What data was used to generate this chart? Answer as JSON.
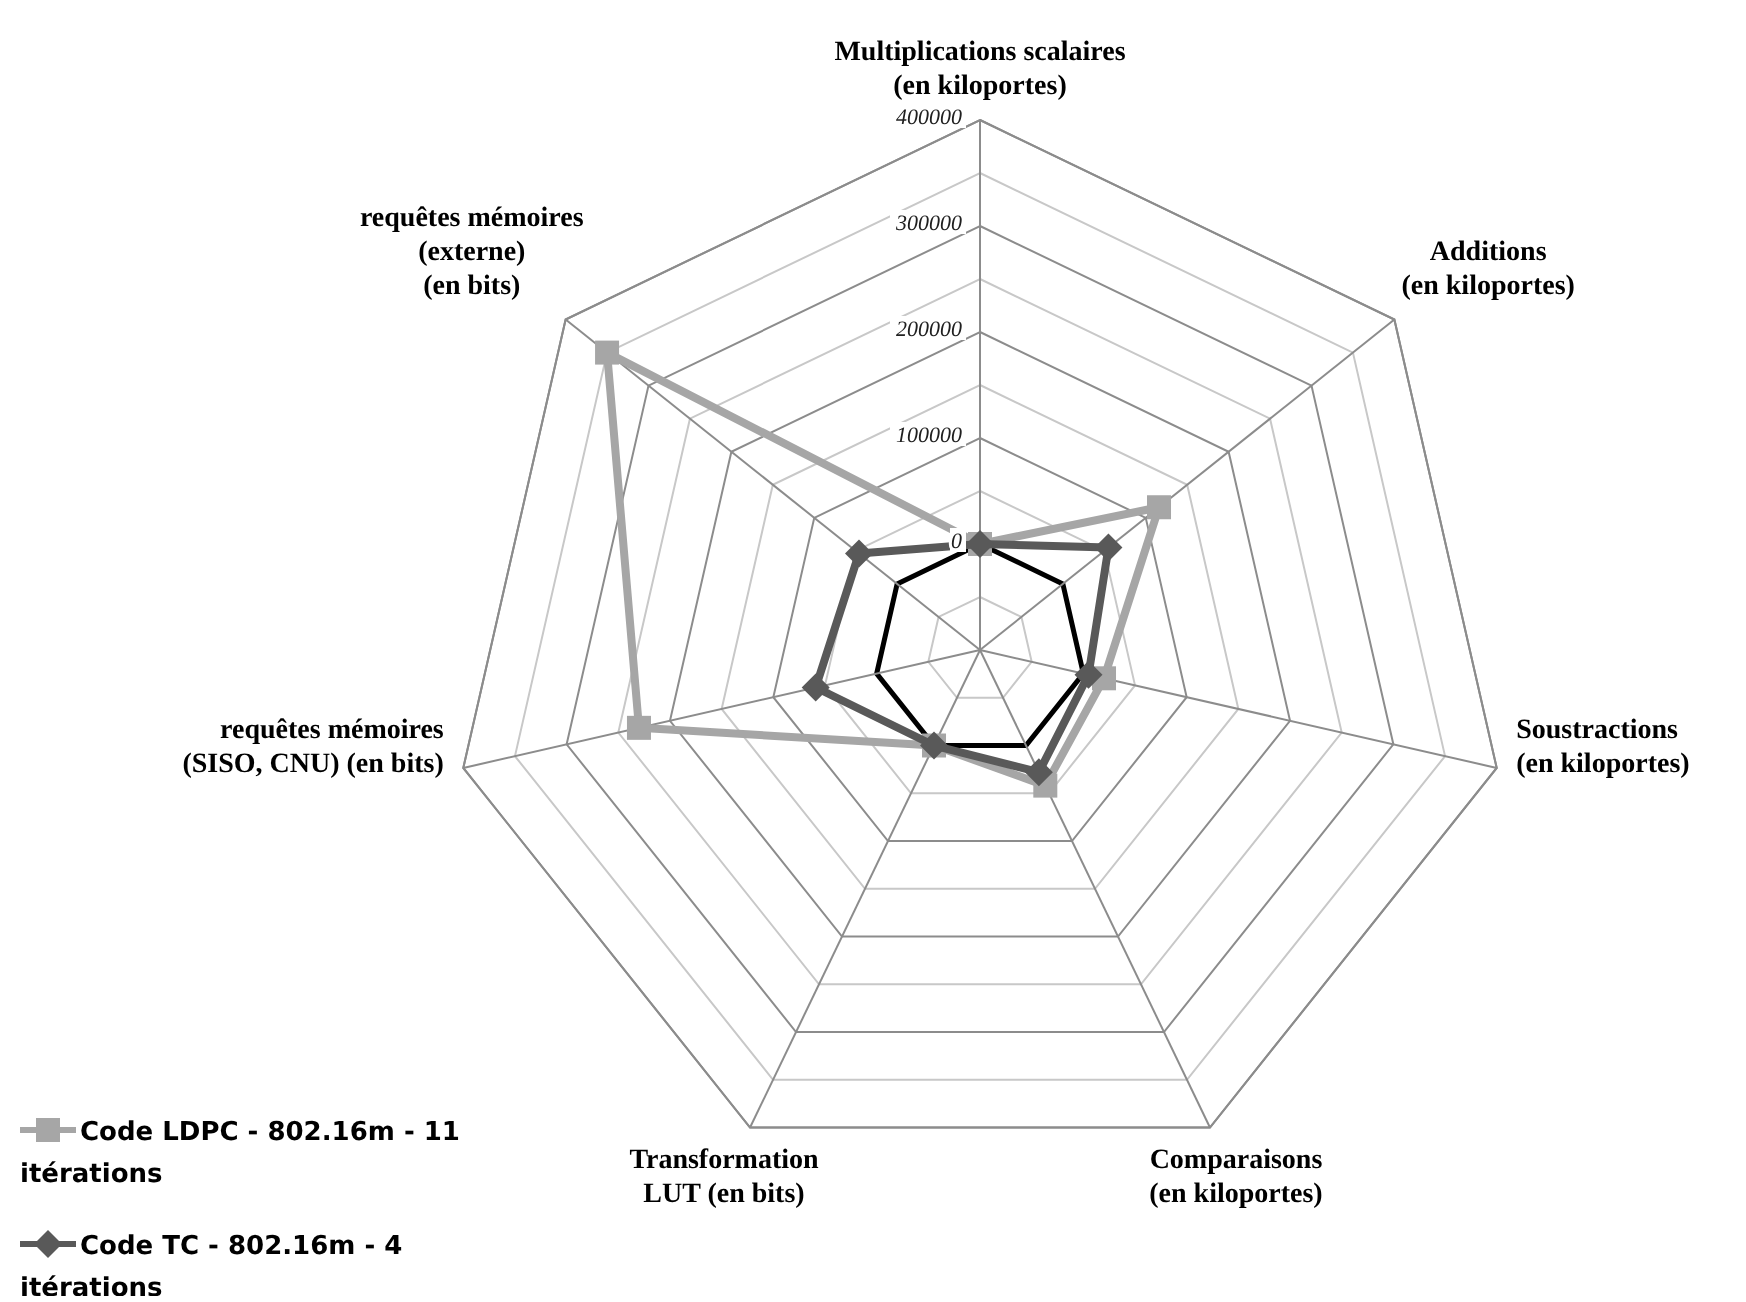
{
  "chart_data": {
    "type": "radar",
    "categories": [
      "Multiplications scalaires\n(en kiloportes)",
      "Additions\n(en kiloportes)",
      "Soustractions\n(en kiloportes)",
      "Comparaisons\n(en kiloportes)",
      "Transformation\nLUT (en bits)",
      "requêtes mémoires\n(SISO, CNU) (en bits)",
      "requêtes mémoires\n(externe)\n(en bits)"
    ],
    "series": [
      {
        "name": "Code LDPC - 802.16m - 11 itérations",
        "color": "#a6a6a6",
        "marker": "square",
        "values": [
          0,
          116000,
          20000,
          42000,
          0,
          230000,
          350000
        ]
      },
      {
        "name": "Code TC - 802.16m - 4 itérations",
        "color": "#595959",
        "marker": "diamond",
        "values": [
          0,
          55000,
          5000,
          28000,
          0,
          59000,
          46000
        ]
      }
    ],
    "ylim": [
      -100000,
      400000
    ],
    "yticks": [
      0,
      100000,
      200000,
      300000,
      400000
    ],
    "grid": true,
    "legend": "bottom left"
  }
}
